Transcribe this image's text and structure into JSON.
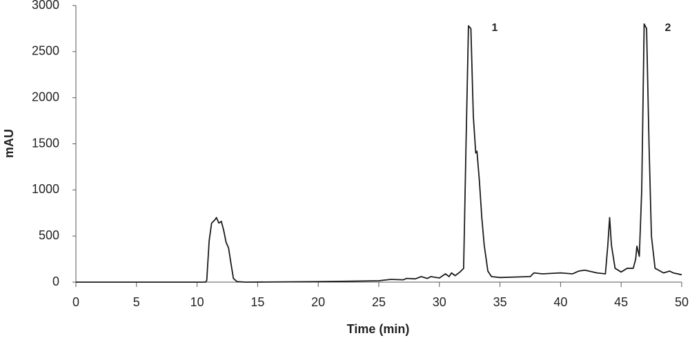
{
  "chart_data": {
    "type": "line",
    "x_label": "Time (min)",
    "y_label": "mAU",
    "annotations": [
      "1",
      "2"
    ],
    "color": "#1a1a1a",
    "xlim": [
      0,
      50
    ],
    "ylim": [
      0,
      3000
    ],
    "xticks": [
      0,
      5,
      10,
      15,
      20,
      25,
      30,
      35,
      40,
      45,
      50
    ],
    "yticks": [
      0,
      500,
      1000,
      1500,
      2000,
      2500,
      3000
    ],
    "grid": false,
    "x": [
      0,
      5,
      10,
      10.7,
      10.8,
      11.0,
      11.2,
      11.5,
      11.6,
      11.8,
      12.0,
      12.2,
      12.4,
      12.6,
      12.8,
      13.0,
      13.3,
      14,
      20,
      25,
      26,
      27,
      27.3,
      28,
      28.5,
      29,
      29.3,
      30,
      30.5,
      30.8,
      31,
      31.3,
      31.7,
      32,
      32.2,
      32.4,
      32.6,
      32.8,
      33.0,
      33.1,
      33.3,
      33.5,
      33.7,
      34.0,
      34.3,
      35,
      37.5,
      37.8,
      38.5,
      40,
      41,
      41.5,
      42,
      43,
      43.7,
      43.9,
      44.05,
      44.2,
      44.5,
      45,
      45.5,
      46,
      46.2,
      46.3,
      46.5,
      46.7,
      46.9,
      47.1,
      47.3,
      47.5,
      47.8,
      48.5,
      49,
      49.3,
      50
    ],
    "values": [
      0,
      0,
      0,
      0,
      20,
      450,
      640,
      680,
      700,
      640,
      660,
      560,
      430,
      370,
      200,
      40,
      5,
      0,
      5,
      15,
      30,
      25,
      40,
      35,
      60,
      40,
      60,
      45,
      90,
      60,
      100,
      70,
      110,
      150,
      1500,
      2780,
      2750,
      1800,
      1400,
      1420,
      1100,
      700,
      400,
      120,
      60,
      50,
      60,
      100,
      90,
      100,
      90,
      120,
      130,
      100,
      90,
      400,
      700,
      400,
      150,
      110,
      150,
      150,
      250,
      390,
      280,
      1000,
      2800,
      2750,
      1500,
      500,
      150,
      100,
      120,
      100,
      80
    ]
  }
}
